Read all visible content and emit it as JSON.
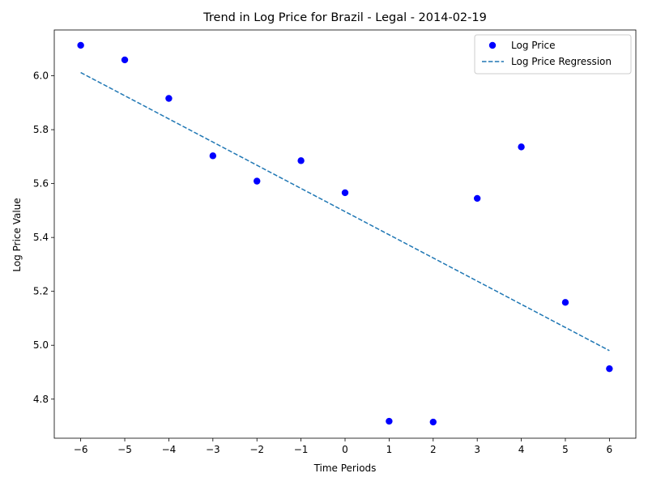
{
  "chart_data": {
    "type": "scatter",
    "title": "Trend in Log Price for Brazil - Legal - 2014-02-19",
    "xlabel": "Time Periods",
    "ylabel": "Log Price Value",
    "xlim": [
      -6.6,
      6.6
    ],
    "ylim": [
      4.655,
      6.17
    ],
    "x_ticks": [
      -6,
      -5,
      -4,
      -3,
      -2,
      -1,
      0,
      1,
      2,
      3,
      4,
      5,
      6
    ],
    "y_ticks": [
      4.8,
      5.0,
      5.2,
      5.4,
      5.6,
      5.8,
      6.0
    ],
    "grid": false,
    "legend_position": "top-right",
    "series": [
      {
        "name": "Log Price",
        "kind": "scatter",
        "color": "#0000ff",
        "x": [
          -6,
          -5,
          -4,
          -3,
          -2,
          -1,
          0,
          1,
          2,
          3,
          4,
          5,
          6
        ],
        "y": [
          6.113,
          6.059,
          5.916,
          5.703,
          5.609,
          5.685,
          5.566,
          4.718,
          4.715,
          5.545,
          5.736,
          5.159,
          4.913
        ]
      },
      {
        "name": "Log Price Regression",
        "kind": "line",
        "line_style": "dashed",
        "color": "#1f77b4",
        "x": [
          -6,
          6
        ],
        "y": [
          6.012,
          4.98
        ]
      }
    ]
  }
}
